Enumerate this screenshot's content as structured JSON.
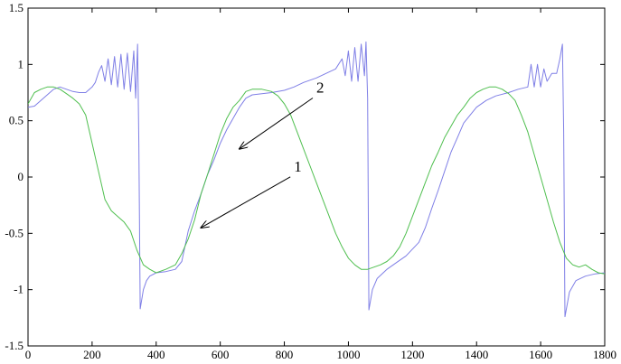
{
  "chart_data": {
    "type": "line",
    "title": "",
    "xlabel": "",
    "ylabel": "",
    "xlim": [
      0,
      1800
    ],
    "ylim": [
      -1.5,
      1.5
    ],
    "grid": false,
    "legend": "none",
    "x_ticks": [
      0,
      200,
      400,
      600,
      800,
      1000,
      1200,
      1400,
      1600,
      1800
    ],
    "y_ticks": [
      -1.5,
      -1,
      -0.5,
      0,
      0.5,
      1,
      1.5
    ],
    "x_tick_labels": [
      "0",
      "200",
      "400",
      "600",
      "800",
      "1000",
      "1200",
      "1400",
      "1600",
      "1800"
    ],
    "y_tick_labels": [
      "-1.5",
      "-1",
      "-0.5",
      "0",
      "0.5",
      "1",
      "1.5"
    ],
    "series": [
      {
        "color": "#7f7fe6",
        "points": [
          [
            0,
            0.62
          ],
          [
            20,
            0.63
          ],
          [
            40,
            0.68
          ],
          [
            60,
            0.73
          ],
          [
            80,
            0.78
          ],
          [
            100,
            0.8
          ],
          [
            120,
            0.78
          ],
          [
            140,
            0.76
          ],
          [
            160,
            0.75
          ],
          [
            180,
            0.75
          ],
          [
            200,
            0.8
          ],
          [
            210,
            0.84
          ],
          [
            220,
            0.93
          ],
          [
            230,
            0.99
          ],
          [
            240,
            0.85
          ],
          [
            250,
            1.05
          ],
          [
            260,
            0.82
          ],
          [
            270,
            1.07
          ],
          [
            280,
            0.8
          ],
          [
            290,
            1.09
          ],
          [
            300,
            0.78
          ],
          [
            310,
            1.1
          ],
          [
            320,
            0.76
          ],
          [
            330,
            1.12
          ],
          [
            336,
            0.7
          ],
          [
            342,
            1.18
          ],
          [
            346,
            0.3
          ],
          [
            350,
            -1.17
          ],
          [
            360,
            -1.0
          ],
          [
            370,
            -0.92
          ],
          [
            380,
            -0.88
          ],
          [
            400,
            -0.85
          ],
          [
            430,
            -0.84
          ],
          [
            460,
            -0.82
          ],
          [
            480,
            -0.75
          ],
          [
            500,
            -0.48
          ],
          [
            520,
            -0.3
          ],
          [
            540,
            -0.15
          ],
          [
            560,
            0.02
          ],
          [
            580,
            0.15
          ],
          [
            600,
            0.3
          ],
          [
            620,
            0.42
          ],
          [
            640,
            0.52
          ],
          [
            660,
            0.62
          ],
          [
            680,
            0.7
          ],
          [
            700,
            0.73
          ],
          [
            730,
            0.74
          ],
          [
            760,
            0.75
          ],
          [
            800,
            0.77
          ],
          [
            830,
            0.8
          ],
          [
            860,
            0.84
          ],
          [
            900,
            0.88
          ],
          [
            930,
            0.92
          ],
          [
            960,
            0.96
          ],
          [
            980,
            1.05
          ],
          [
            990,
            0.9
          ],
          [
            1000,
            1.12
          ],
          [
            1010,
            0.85
          ],
          [
            1020,
            1.15
          ],
          [
            1030,
            0.85
          ],
          [
            1040,
            1.18
          ],
          [
            1050,
            0.9
          ],
          [
            1055,
            1.2
          ],
          [
            1060,
            0.7
          ],
          [
            1064,
            -1.18
          ],
          [
            1075,
            -1.0
          ],
          [
            1090,
            -0.9
          ],
          [
            1120,
            -0.82
          ],
          [
            1150,
            -0.76
          ],
          [
            1180,
            -0.7
          ],
          [
            1220,
            -0.58
          ],
          [
            1240,
            -0.45
          ],
          [
            1260,
            -0.28
          ],
          [
            1280,
            -0.12
          ],
          [
            1300,
            0.05
          ],
          [
            1320,
            0.22
          ],
          [
            1340,
            0.35
          ],
          [
            1360,
            0.48
          ],
          [
            1380,
            0.55
          ],
          [
            1400,
            0.62
          ],
          [
            1430,
            0.68
          ],
          [
            1460,
            0.72
          ],
          [
            1500,
            0.75
          ],
          [
            1530,
            0.78
          ],
          [
            1560,
            0.8
          ],
          [
            1570,
            1.0
          ],
          [
            1580,
            0.8
          ],
          [
            1590,
            1.0
          ],
          [
            1600,
            0.8
          ],
          [
            1610,
            0.96
          ],
          [
            1620,
            0.85
          ],
          [
            1635,
            0.92
          ],
          [
            1650,
            0.92
          ],
          [
            1660,
            1.05
          ],
          [
            1668,
            1.18
          ],
          [
            1672,
            0.4
          ],
          [
            1676,
            -1.24
          ],
          [
            1690,
            -1.02
          ],
          [
            1710,
            -0.92
          ],
          [
            1740,
            -0.88
          ],
          [
            1770,
            -0.86
          ],
          [
            1800,
            -0.85
          ]
        ]
      },
      {
        "color": "#4fbf4f",
        "points": [
          [
            0,
            0.65
          ],
          [
            20,
            0.75
          ],
          [
            40,
            0.78
          ],
          [
            60,
            0.8
          ],
          [
            80,
            0.8
          ],
          [
            100,
            0.78
          ],
          [
            120,
            0.74
          ],
          [
            140,
            0.7
          ],
          [
            160,
            0.65
          ],
          [
            180,
            0.55
          ],
          [
            200,
            0.3
          ],
          [
            220,
            0.05
          ],
          [
            240,
            -0.2
          ],
          [
            260,
            -0.3
          ],
          [
            280,
            -0.35
          ],
          [
            300,
            -0.4
          ],
          [
            320,
            -0.48
          ],
          [
            340,
            -0.65
          ],
          [
            360,
            -0.78
          ],
          [
            380,
            -0.82
          ],
          [
            400,
            -0.85
          ],
          [
            430,
            -0.82
          ],
          [
            460,
            -0.78
          ],
          [
            480,
            -0.68
          ],
          [
            500,
            -0.55
          ],
          [
            520,
            -0.38
          ],
          [
            540,
            -0.15
          ],
          [
            560,
            0.02
          ],
          [
            580,
            0.2
          ],
          [
            600,
            0.38
          ],
          [
            620,
            0.52
          ],
          [
            640,
            0.62
          ],
          [
            660,
            0.68
          ],
          [
            680,
            0.76
          ],
          [
            700,
            0.78
          ],
          [
            730,
            0.78
          ],
          [
            760,
            0.76
          ],
          [
            780,
            0.72
          ],
          [
            800,
            0.65
          ],
          [
            820,
            0.55
          ],
          [
            840,
            0.4
          ],
          [
            860,
            0.25
          ],
          [
            880,
            0.1
          ],
          [
            900,
            -0.05
          ],
          [
            920,
            -0.2
          ],
          [
            940,
            -0.35
          ],
          [
            960,
            -0.5
          ],
          [
            980,
            -0.62
          ],
          [
            1000,
            -0.72
          ],
          [
            1020,
            -0.78
          ],
          [
            1040,
            -0.82
          ],
          [
            1060,
            -0.82
          ],
          [
            1080,
            -0.8
          ],
          [
            1100,
            -0.78
          ],
          [
            1120,
            -0.75
          ],
          [
            1140,
            -0.7
          ],
          [
            1160,
            -0.62
          ],
          [
            1180,
            -0.5
          ],
          [
            1200,
            -0.35
          ],
          [
            1220,
            -0.2
          ],
          [
            1240,
            -0.05
          ],
          [
            1260,
            0.1
          ],
          [
            1280,
            0.22
          ],
          [
            1300,
            0.35
          ],
          [
            1320,
            0.45
          ],
          [
            1340,
            0.55
          ],
          [
            1360,
            0.62
          ],
          [
            1380,
            0.7
          ],
          [
            1400,
            0.75
          ],
          [
            1420,
            0.78
          ],
          [
            1440,
            0.8
          ],
          [
            1460,
            0.8
          ],
          [
            1480,
            0.78
          ],
          [
            1500,
            0.74
          ],
          [
            1520,
            0.68
          ],
          [
            1540,
            0.55
          ],
          [
            1560,
            0.4
          ],
          [
            1580,
            0.2
          ],
          [
            1600,
            0.0
          ],
          [
            1620,
            -0.2
          ],
          [
            1640,
            -0.4
          ],
          [
            1660,
            -0.58
          ],
          [
            1680,
            -0.72
          ],
          [
            1700,
            -0.78
          ],
          [
            1720,
            -0.8
          ],
          [
            1740,
            -0.78
          ],
          [
            1760,
            -0.82
          ],
          [
            1780,
            -0.85
          ],
          [
            1800,
            -0.86
          ]
        ]
      }
    ],
    "annotations": [
      {
        "text": "1",
        "label_at": [
          830,
          0.05
        ],
        "arrow_to": [
          540,
          -0.45
        ]
      },
      {
        "text": "2",
        "label_at": [
          900,
          0.75
        ],
        "arrow_to": [
          660,
          0.25
        ]
      }
    ]
  }
}
